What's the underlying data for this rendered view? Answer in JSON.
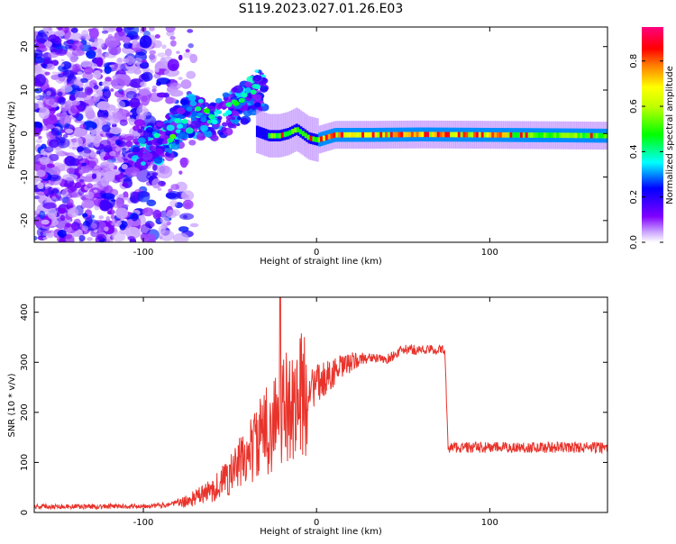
{
  "title": "S119.2023.027.01.26.E03",
  "colors": {
    "snr_line": "#e8332b"
  },
  "chart_data": [
    {
      "type": "heatmap",
      "xlabel": "Height of straight line (km)",
      "ylabel": "Frequency (Hz)",
      "xlim": [
        -163,
        168
      ],
      "ylim": [
        -25,
        24.5
      ],
      "x_ticks": [
        -100,
        0,
        100
      ],
      "y_ticks": [
        -20,
        -10,
        0,
        10,
        20
      ],
      "colorbar": {
        "label": "Normalized spectral amplitude",
        "range": [
          0,
          0.95
        ],
        "ticks": [
          "0.0",
          "0.2",
          "0.4",
          "0.6",
          "0.8"
        ],
        "colors": [
          "#ffffff",
          "#8000ff",
          "#0000ff",
          "#00ffff",
          "#00ff00",
          "#ffff00",
          "#ff8000",
          "#ff0000",
          "#ff0080"
        ]
      },
      "features": {
        "ridge_center_freq": [
          [
            -35,
            0.5
          ],
          [
            -28,
            -0.5
          ],
          [
            -22,
            -0.5
          ],
          [
            -17,
            0
          ],
          [
            -12,
            1
          ],
          [
            -5,
            -1
          ],
          [
            0,
            -1.5
          ],
          [
            10,
            -0.3
          ],
          [
            30,
            -0.3
          ],
          [
            60,
            -0.2
          ],
          [
            100,
            -0.3
          ],
          [
            140,
            -0.4
          ],
          [
            168,
            -0.5
          ]
        ],
        "blob_path": [
          [
            -100,
            -3
          ],
          [
            -90,
            -2
          ],
          [
            -80,
            2
          ],
          [
            -72,
            4
          ],
          [
            -60,
            3
          ],
          [
            -50,
            5
          ],
          [
            -42,
            7
          ],
          [
            -35,
            10
          ]
        ]
      }
    },
    {
      "type": "line",
      "xlabel": "Height of straight line (km)",
      "ylabel": "SNR (10 * v/v)",
      "xlim": [
        -163,
        168
      ],
      "ylim": [
        0,
        430
      ],
      "x_ticks": [
        -100,
        0,
        100
      ],
      "y_ticks": [
        0,
        100,
        200,
        300,
        400
      ],
      "trend": [
        [
          -163,
          12
        ],
        [
          -120,
          12
        ],
        [
          -90,
          14
        ],
        [
          -75,
          22
        ],
        [
          -60,
          45
        ],
        [
          -50,
          75
        ],
        [
          -40,
          115
        ],
        [
          -30,
          160
        ],
        [
          -20,
          200
        ],
        [
          -10,
          230
        ],
        [
          0,
          255
        ],
        [
          10,
          280
        ],
        [
          20,
          300
        ],
        [
          30,
          310
        ],
        [
          40,
          305
        ],
        [
          45,
          315
        ],
        [
          50,
          325
        ],
        [
          60,
          325
        ],
        [
          74,
          325
        ],
        [
          76,
          130
        ],
        [
          100,
          130
        ],
        [
          130,
          130
        ],
        [
          168,
          130
        ]
      ],
      "spike": {
        "x": -21,
        "value": 430
      }
    }
  ]
}
